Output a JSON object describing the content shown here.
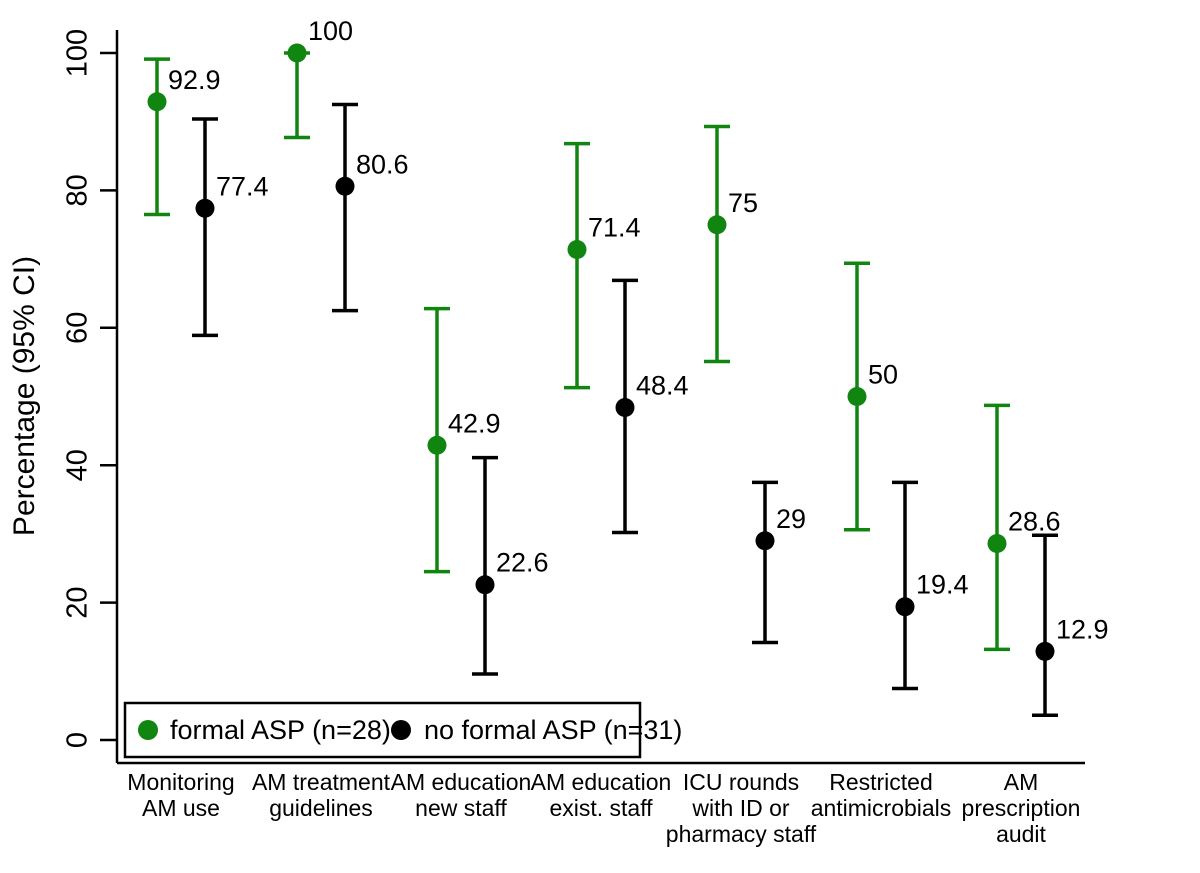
{
  "figure": {
    "background": "#ffffff",
    "accent_green": "#108510",
    "accent_black": "#000000"
  },
  "chart_data": {
    "type": "scatter",
    "subtype": "point-estimates-with-95ci-error-bars",
    "title": "",
    "xlabel": "",
    "ylabel": "Percentage (95% CI)",
    "ylim": [
      0,
      100
    ],
    "yticks": [
      "0",
      "20",
      "40",
      "60",
      "80",
      "100"
    ],
    "ytick_values": [
      0,
      20,
      40,
      60,
      80,
      100
    ],
    "grid": "off",
    "legend_position": "inside bottom-left",
    "categories": [
      "Monitoring AM use",
      "AM treatment guidelines",
      "AM education new staff",
      "AM education exist. staff",
      "ICU rounds with ID or pharmacy staff",
      "Restricted antimicrobials",
      "AM prescription audit"
    ],
    "category_label_lines": [
      [
        "Monitoring",
        "AM use"
      ],
      [
        "AM treatment",
        "guidelines"
      ],
      [
        "AM education",
        "new staff"
      ],
      [
        "AM education",
        "exist. staff"
      ],
      [
        "ICU rounds",
        "with ID or",
        "pharmacy staff"
      ],
      [
        "Restricted",
        "antimicrobials"
      ],
      [
        "AM",
        "prescription",
        "audit"
      ]
    ],
    "series": [
      {
        "name": "formal ASP (n=28)",
        "color": "#108510",
        "values": [
          92.9,
          100,
          42.9,
          71.4,
          75,
          50,
          28.6
        ],
        "labels": [
          "92.9",
          "100",
          "42.9",
          "71.4",
          "75",
          "50",
          "28.6"
        ],
        "label_colors": [
          "#000000",
          "#000000",
          "#000000",
          "#000000",
          "#108510",
          "#108510",
          "#108510"
        ],
        "ci_low": [
          76.5,
          87.7,
          24.5,
          51.3,
          55.1,
          30.6,
          13.2
        ],
        "ci_high": [
          99.1,
          100,
          62.8,
          86.8,
          89.3,
          69.4,
          48.7
        ]
      },
      {
        "name": "no formal ASP (n=31)",
        "color": "#000000",
        "values": [
          77.4,
          80.6,
          22.6,
          48.4,
          29,
          19.4,
          12.9
        ],
        "labels": [
          "77.4",
          "80.6",
          "22.6",
          "48.4",
          "29",
          "19.4",
          "12.9"
        ],
        "label_colors": [
          "#000000",
          "#000000",
          "#000000",
          "#000000",
          "#000000",
          "#000000",
          "#000000"
        ],
        "ci_low": [
          58.9,
          62.5,
          9.6,
          30.2,
          14.2,
          7.5,
          3.6
        ],
        "ci_high": [
          90.4,
          92.5,
          41.1,
          66.9,
          37.5,
          37.5,
          29.8
        ]
      }
    ]
  }
}
